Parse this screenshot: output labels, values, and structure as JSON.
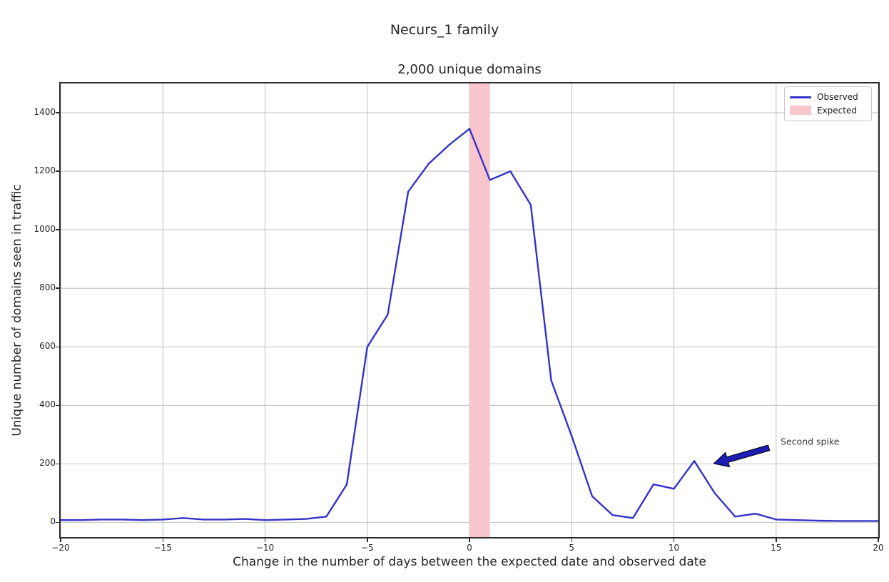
{
  "figure": {
    "suptitle": "Necurs_1 family",
    "background": "#ffffff"
  },
  "axes": {
    "title": "2,000 unique domains",
    "xlabel": "Change in the number of days between the expected date and observed date",
    "ylabel": "Unique number of domains seen in traffic",
    "xticks": [
      -20,
      -15,
      -10,
      -5,
      0,
      5,
      10,
      15,
      20
    ],
    "yticks": [
      0,
      200,
      400,
      600,
      800,
      1000,
      1200,
      1400
    ],
    "grid_color": "#c9c9c9",
    "spine_color": "#2b2b2b"
  },
  "legend": {
    "entries": [
      {
        "label": "Observed",
        "type": "line",
        "color": "#3432c8"
      },
      {
        "label": "Expected",
        "type": "patch",
        "color": "#f8c6cc"
      }
    ]
  },
  "chart_data": {
    "type": "line",
    "title": "2,000 unique domains",
    "suptitle": "Necurs_1 family",
    "xlabel": "Change in the number of days between the expected date and observed date",
    "ylabel": "Unique number of domains seen in traffic",
    "xlim": [
      -20,
      20
    ],
    "ylim": [
      -50,
      1500
    ],
    "grid": true,
    "legend_position": "upper right",
    "series": [
      {
        "name": "Observed",
        "color": "#3432c8",
        "x": [
          -20,
          -19,
          -18,
          -17,
          -16,
          -15,
          -14,
          -13,
          -12,
          -11,
          -10,
          -9,
          -8,
          -7,
          -6,
          -5,
          -4,
          -3,
          -2,
          -1,
          0,
          1,
          2,
          3,
          4,
          5,
          6,
          7,
          8,
          9,
          10,
          11,
          12,
          13,
          14,
          15,
          16,
          17,
          18,
          19,
          20
        ],
        "y": [
          8,
          8,
          10,
          10,
          8,
          10,
          15,
          10,
          10,
          12,
          8,
          10,
          12,
          20,
          130,
          600,
          710,
          1130,
          1225,
          1290,
          1345,
          1170,
          1200,
          1085,
          485,
          295,
          90,
          25,
          15,
          130,
          115,
          210,
          100,
          20,
          30,
          10,
          8,
          6,
          5,
          5,
          5
        ]
      }
    ],
    "expected_band": {
      "label": "Expected",
      "x_start": 0,
      "x_end": 1,
      "color": "#f8c6cc"
    },
    "annotation": {
      "text": "Second spike",
      "text_xy": [
        15.15,
        274
      ],
      "arrow_tail": [
        14.65,
        255
      ],
      "arrow_head": [
        11.95,
        201
      ],
      "arrow_color": "#1c1cb4",
      "text_color": "#3a3a3a"
    }
  }
}
